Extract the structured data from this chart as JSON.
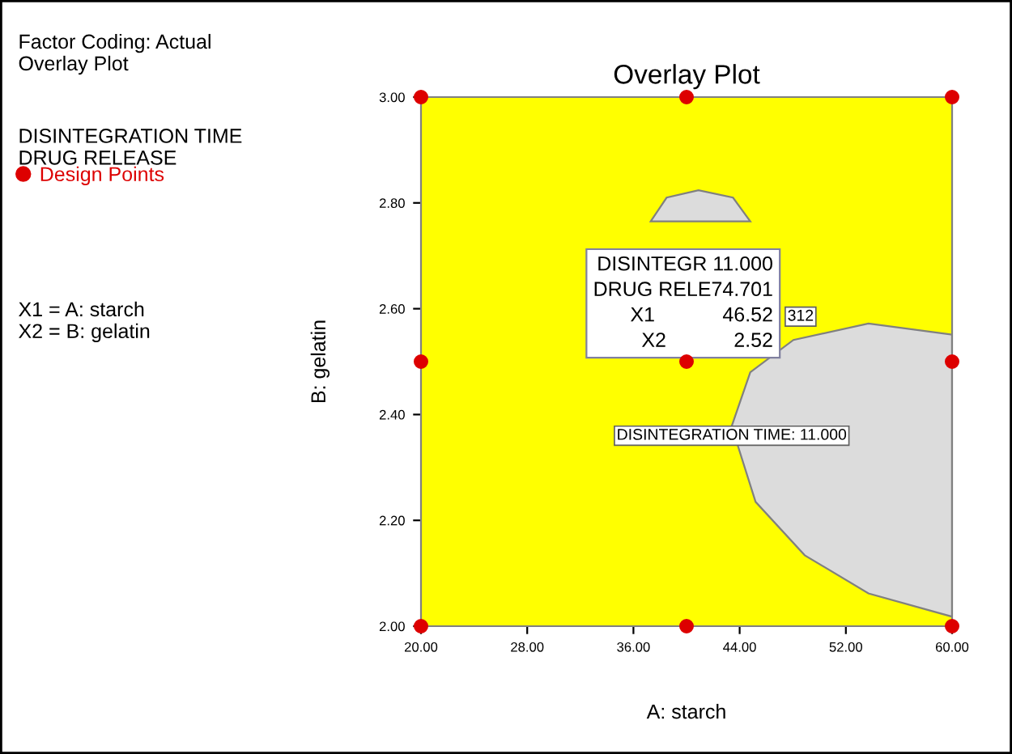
{
  "chart_data": {
    "type": "scatter",
    "title": "Overlay Plot",
    "xlabel": "A: starch",
    "ylabel": "B: gelatin",
    "xlim": [
      20,
      60
    ],
    "ylim": [
      2,
      3
    ],
    "xticks": [
      {
        "value": 20,
        "label": "20.00"
      },
      {
        "value": 28,
        "label": "28.00"
      },
      {
        "value": 36,
        "label": "36.00"
      },
      {
        "value": 44,
        "label": "44.00"
      },
      {
        "value": 52,
        "label": "52.00"
      },
      {
        "value": 60,
        "label": "60.00"
      }
    ],
    "yticks": [
      {
        "value": 2,
        "label": "2.00"
      },
      {
        "value": 2.2,
        "label": "2.20"
      },
      {
        "value": 2.4,
        "label": "2.40"
      },
      {
        "value": 2.6,
        "label": "2.60"
      },
      {
        "value": 2.8,
        "label": "2.80"
      },
      {
        "value": 3,
        "label": "3.00"
      }
    ],
    "grid": false,
    "legend": "left",
    "bands": [
      {
        "axis": "x",
        "from": 20,
        "to": 60,
        "color": "#ffff00"
      }
    ],
    "series": [
      {
        "type": "area",
        "color": "#dcdcdc",
        "x": [
          37.3,
          38.5,
          40.9,
          43.5,
          44.8
        ],
        "values": [
          2.765,
          2.81,
          2.824,
          2.81,
          2.765
        ]
      },
      {
        "type": "area",
        "color": "#dcdcdc",
        "x": [
          60,
          53.7,
          48.05,
          44.8,
          43.4,
          45.2,
          48.9,
          53.7,
          60
        ],
        "values": [
          2.551,
          2.572,
          2.541,
          2.48,
          2.378,
          2.235,
          2.134,
          2.062,
          2.018
        ]
      },
      {
        "name": "Design Points",
        "marker": "circle",
        "color": "#dd0000",
        "x": [
          20,
          40,
          60,
          20,
          40,
          60,
          20,
          40,
          60
        ],
        "values": [
          2,
          2,
          2,
          2.5,
          2.5,
          2.5,
          3,
          3,
          3
        ]
      }
    ],
    "annotations": [
      {
        "text": "DISINTEGR 11.000\nDRUG RELE74.701\nX1            46.52\nX2            2.52",
        "x": 46.52,
        "y": 2.52
      },
      {
        "text": "DISINTEGRATION TIME: 11.000",
        "x": 43.4,
        "y": 2.36
      },
      "Factor Coding: Actual\nOverlay Plot",
      "DISINTEGRATION TIME\nDRUG RELEASE",
      "X1 = A: starch\nX2 = B: gelatin",
      "312"
    ]
  }
}
